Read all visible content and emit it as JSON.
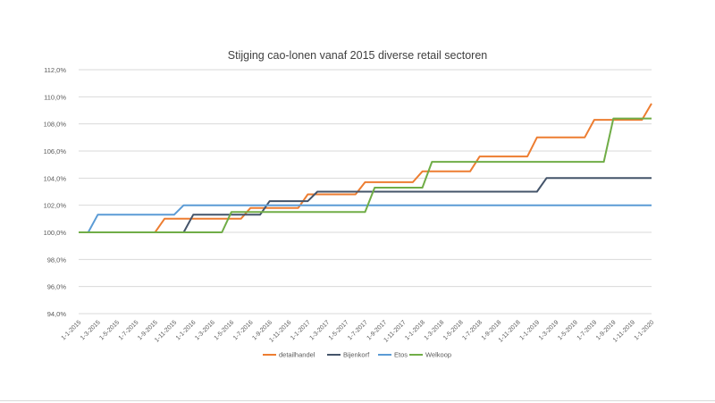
{
  "chart_data": {
    "type": "line",
    "title": "Stijging cao-lonen vanaf 2015 diverse retail sectoren",
    "xlabel": "",
    "ylabel": "",
    "ylim": [
      94,
      112
    ],
    "y_ticks": [
      "94,0%",
      "96,0%",
      "98,0%",
      "100,0%",
      "102,0%",
      "104,0%",
      "106,0%",
      "108,0%",
      "110,0%",
      "112,0%"
    ],
    "x_ticks": [
      "1-1-2015",
      "1-3-2015",
      "1-5-2015",
      "1-7-2015",
      "1-9-2015",
      "1-11-2015",
      "1-1-2016",
      "1-3-2016",
      "1-5-2016",
      "1-7-2016",
      "1-9-2016",
      "1-11-2016",
      "1-1-2017",
      "1-3-2017",
      "1-5-2017",
      "1-7-2017",
      "1-9-2017",
      "1-11-2017",
      "1-1-2018",
      "1-3-2018",
      "1-5-2018",
      "1-7-2018",
      "1-9-2018",
      "1-11-2018",
      "1-1-2019",
      "1-3-2019",
      "1-5-2019",
      "1-7-2019",
      "1-9-2019",
      "1-11-2019",
      "1-1-2020"
    ],
    "grid": true,
    "legend_position": "bottom",
    "series": [
      {
        "name": "detailhandel",
        "color": "#ED7D31",
        "points": [
          [
            "1-1-2015",
            100.0
          ],
          [
            "1-9-2015",
            100.0
          ],
          [
            "1-10-2015",
            101.0
          ],
          [
            "1-6-2016",
            101.0
          ],
          [
            "1-7-2016",
            101.8
          ],
          [
            "1-12-2016",
            101.8
          ],
          [
            "1-1-2017",
            102.8
          ],
          [
            "1-6-2017",
            102.8
          ],
          [
            "1-7-2017",
            103.7
          ],
          [
            "1-12-2017",
            103.7
          ],
          [
            "1-1-2018",
            104.5
          ],
          [
            "1-6-2018",
            104.5
          ],
          [
            "1-7-2018",
            105.6
          ],
          [
            "1-12-2018",
            105.6
          ],
          [
            "1-1-2019",
            107.0
          ],
          [
            "1-6-2019",
            107.0
          ],
          [
            "1-7-2019",
            108.3
          ],
          [
            "1-12-2019",
            108.3
          ],
          [
            "1-1-2020",
            109.5
          ]
        ]
      },
      {
        "name": "Bijenkorf",
        "color": "#44546A",
        "points": [
          [
            "1-1-2015",
            100.0
          ],
          [
            "1-12-2015",
            100.0
          ],
          [
            "1-1-2016",
            101.3
          ],
          [
            "1-5-2016",
            101.3
          ],
          [
            "1-6-2016",
            101.3
          ],
          [
            "1-7-2016",
            101.3
          ],
          [
            "1-8-2016",
            101.3
          ],
          [
            "1-9-2016",
            102.3
          ],
          [
            "1-12-2016",
            102.3
          ],
          [
            "1-1-2017",
            102.3
          ],
          [
            "1-2-2017",
            103.0
          ],
          [
            "1-1-2019",
            103.0
          ],
          [
            "1-2-2019",
            104.0
          ],
          [
            "1-1-2020",
            104.0
          ]
        ]
      },
      {
        "name": "Etos",
        "color": "#5B9BD5",
        "points": [
          [
            "1-1-2015",
            100.0
          ],
          [
            "1-2-2015",
            100.0
          ],
          [
            "1-3-2015",
            101.3
          ],
          [
            "1-11-2015",
            101.3
          ],
          [
            "1-12-2015",
            102.0
          ],
          [
            "1-1-2020",
            102.0
          ]
        ]
      },
      {
        "name": "Welkoop",
        "color": "#70AD47",
        "points": [
          [
            "1-1-2015",
            100.0
          ],
          [
            "1-4-2016",
            100.0
          ],
          [
            "1-5-2016",
            101.5
          ],
          [
            "1-7-2017",
            101.5
          ],
          [
            "1-8-2017",
            103.3
          ],
          [
            "1-1-2018",
            103.3
          ],
          [
            "1-2-2018",
            105.2
          ],
          [
            "1-8-2019",
            105.2
          ],
          [
            "1-9-2019",
            108.4
          ],
          [
            "1-1-2020",
            108.4
          ]
        ]
      }
    ]
  }
}
